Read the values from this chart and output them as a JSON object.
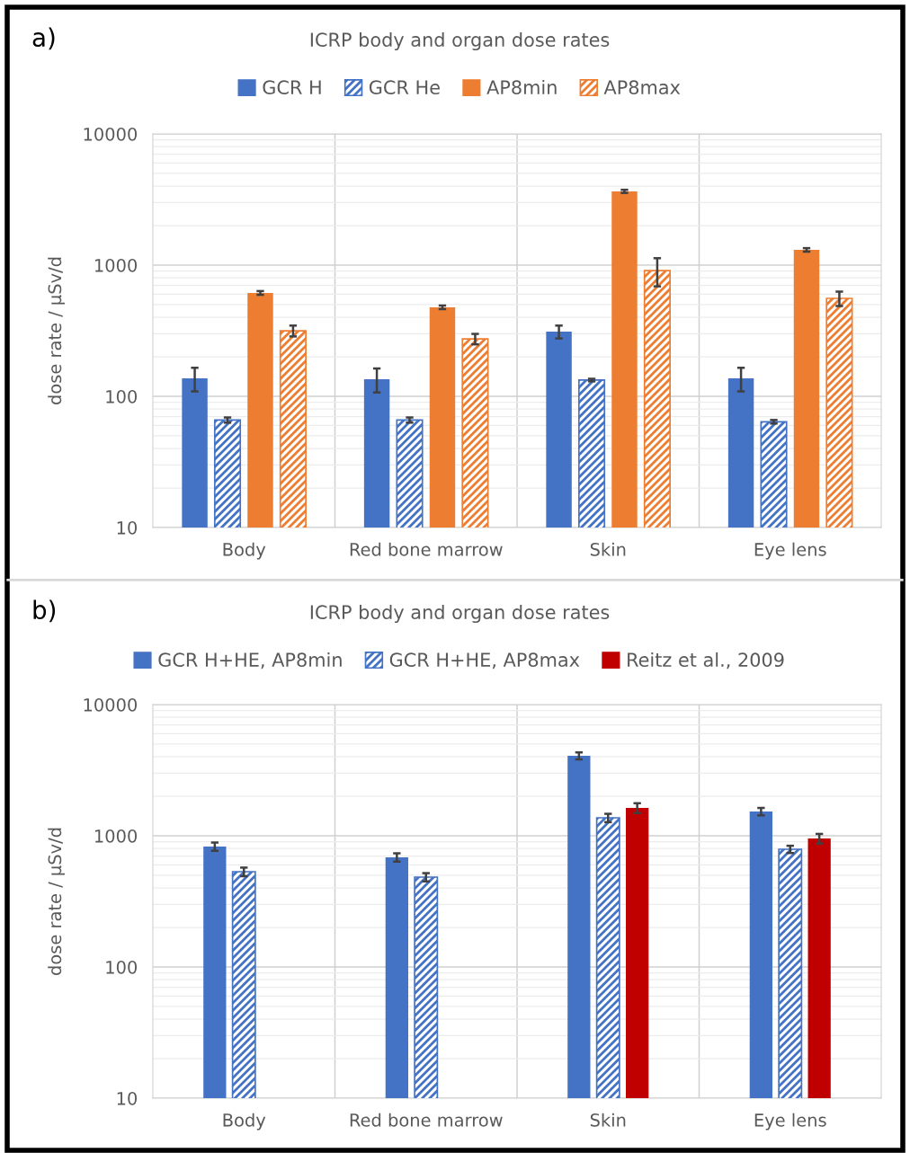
{
  "chart_data": [
    {
      "type": "bar",
      "title": "ICRP body and organ dose rates",
      "ylabel": "dose rate / µSv/d",
      "annotations": [
        "a)"
      ],
      "categories": [
        "Body",
        "Red bone marrow",
        "Skin",
        "Eye lens"
      ],
      "series": [
        {
          "name": "GCR H",
          "color": "#4472c4",
          "values": [
            137,
            135,
            311,
            137
          ],
          "errors": [
            28,
            28,
            35,
            28
          ]
        },
        {
          "name": "GCR He",
          "color": "#4472c4",
          "values": [
            66,
            66,
            133,
            64
          ],
          "errors": [
            3,
            3,
            3,
            2
          ]
        },
        {
          "name": "AP8min",
          "color": "#ed7d31",
          "values": [
            614,
            477,
            3650,
            1307
          ],
          "errors": [
            20,
            15,
            100,
            40
          ]
        },
        {
          "name": "AP8max",
          "color": "#ed7d31",
          "values": [
            316,
            274,
            909,
            558
          ],
          "errors": [
            30,
            25,
            220,
            70
          ]
        }
      ],
      "log": true,
      "ylim": [
        10,
        10000
      ],
      "yticks": [
        10,
        100,
        1000,
        10000
      ],
      "grid": true,
      "legend": "top"
    },
    {
      "type": "bar",
      "title": "ICRP body and organ dose rates",
      "ylabel": "dose rate / µSv/d",
      "annotations": [
        "b)"
      ],
      "categories": [
        "Body",
        "Red bone marrow",
        "Skin",
        "Eye lens"
      ],
      "series": [
        {
          "name": "GCR H+HE, AP8min",
          "color": "#4472c4",
          "values": [
            828,
            685,
            4070,
            1530
          ],
          "errors": [
            60,
            50,
            250,
            100
          ]
        },
        {
          "name": "GCR H+HE, AP8max",
          "color": "#4472c4",
          "values": [
            532,
            484,
            1370,
            789
          ],
          "errors": [
            40,
            35,
            100,
            50
          ]
        },
        {
          "name": "Reitz et al., 2009",
          "color": "#c00000",
          "values": [
            null,
            null,
            1630,
            953
          ],
          "errors": [
            null,
            null,
            140,
            80
          ]
        }
      ],
      "log": true,
      "ylim": [
        10,
        10000
      ],
      "yticks": [
        10,
        100,
        1000,
        10000
      ],
      "grid": true,
      "legend": "top"
    }
  ]
}
